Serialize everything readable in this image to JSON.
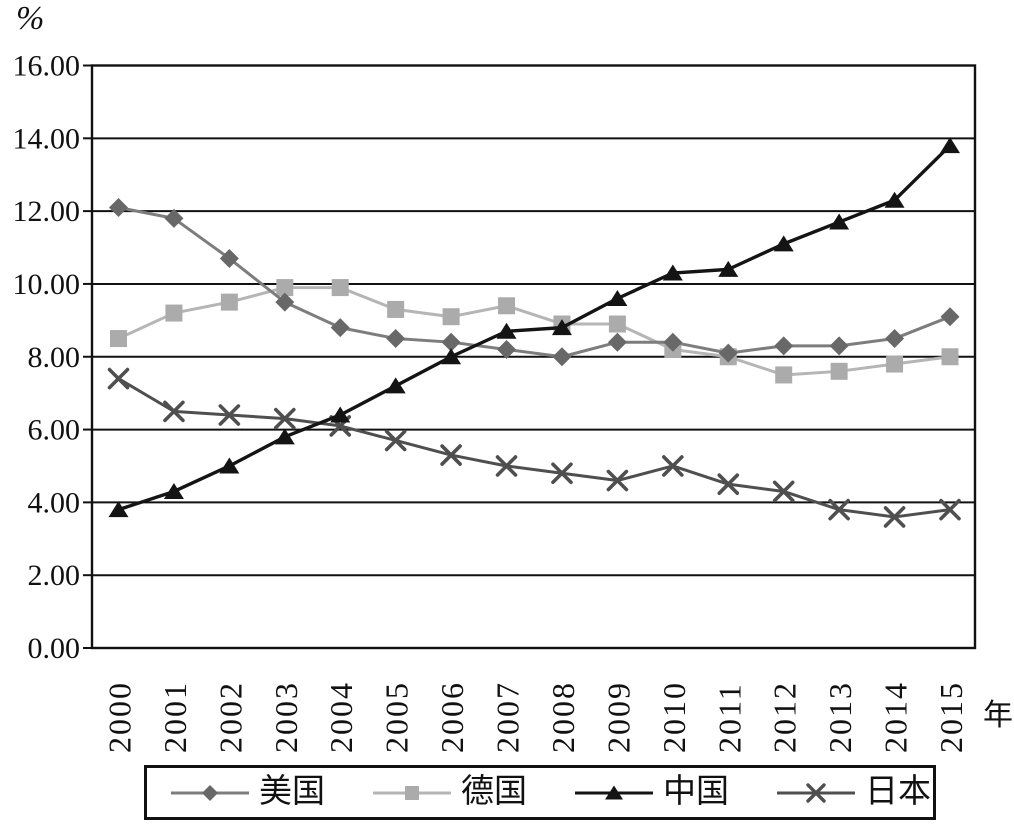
{
  "page": {
    "background": "#ffffff",
    "axis_color": "#111111"
  },
  "chart_data": {
    "type": "line",
    "title": "",
    "xlabel": "年",
    "ylabel": "%",
    "x": [
      "2000",
      "2001",
      "2002",
      "2003",
      "2004",
      "2005",
      "2006",
      "2007",
      "2008",
      "2009",
      "2010",
      "2011",
      "2012",
      "2013",
      "2014",
      "2015"
    ],
    "ylim": [
      0,
      16
    ],
    "ytick_step": 2,
    "ytick_decimals": 2,
    "ytick_labels": [
      "0.00",
      "2.00",
      "4.00",
      "6.00",
      "8.00",
      "10.00",
      "12.00",
      "14.00",
      "16.00"
    ],
    "grid": "horizontal solid black lines",
    "legend_position": "bottom",
    "series": [
      {
        "key": "usa",
        "name": "美国",
        "marker": "diamond",
        "line_color": "#7d7d7d",
        "marker_color": "#686868",
        "values": [
          12.1,
          11.8,
          10.7,
          9.5,
          8.8,
          8.5,
          8.4,
          8.2,
          8.0,
          8.4,
          8.4,
          8.1,
          8.3,
          8.3,
          8.5,
          9.1
        ]
      },
      {
        "key": "germany",
        "name": "德国",
        "marker": "square",
        "line_color": "#b5b5b5",
        "marker_color": "#ababab",
        "values": [
          8.5,
          9.2,
          9.5,
          9.9,
          9.9,
          9.3,
          9.1,
          9.4,
          8.9,
          8.9,
          8.2,
          8.0,
          7.5,
          7.6,
          7.8,
          8.0
        ]
      },
      {
        "key": "china",
        "name": "中国",
        "marker": "triangle",
        "line_color": "#141414",
        "marker_color": "#141414",
        "values": [
          3.8,
          4.3,
          5.0,
          5.8,
          6.4,
          7.2,
          8.0,
          8.7,
          8.8,
          9.6,
          10.3,
          10.4,
          11.1,
          11.7,
          12.3,
          13.8
        ]
      },
      {
        "key": "japan",
        "name": "日本",
        "marker": "x",
        "line_color": "#4f4f4f",
        "marker_color": "#4f4f4f",
        "values": [
          7.4,
          6.5,
          6.4,
          6.3,
          6.1,
          5.7,
          5.3,
          5.0,
          4.8,
          4.6,
          5.0,
          4.5,
          4.3,
          3.8,
          3.6,
          3.8
        ]
      }
    ]
  }
}
